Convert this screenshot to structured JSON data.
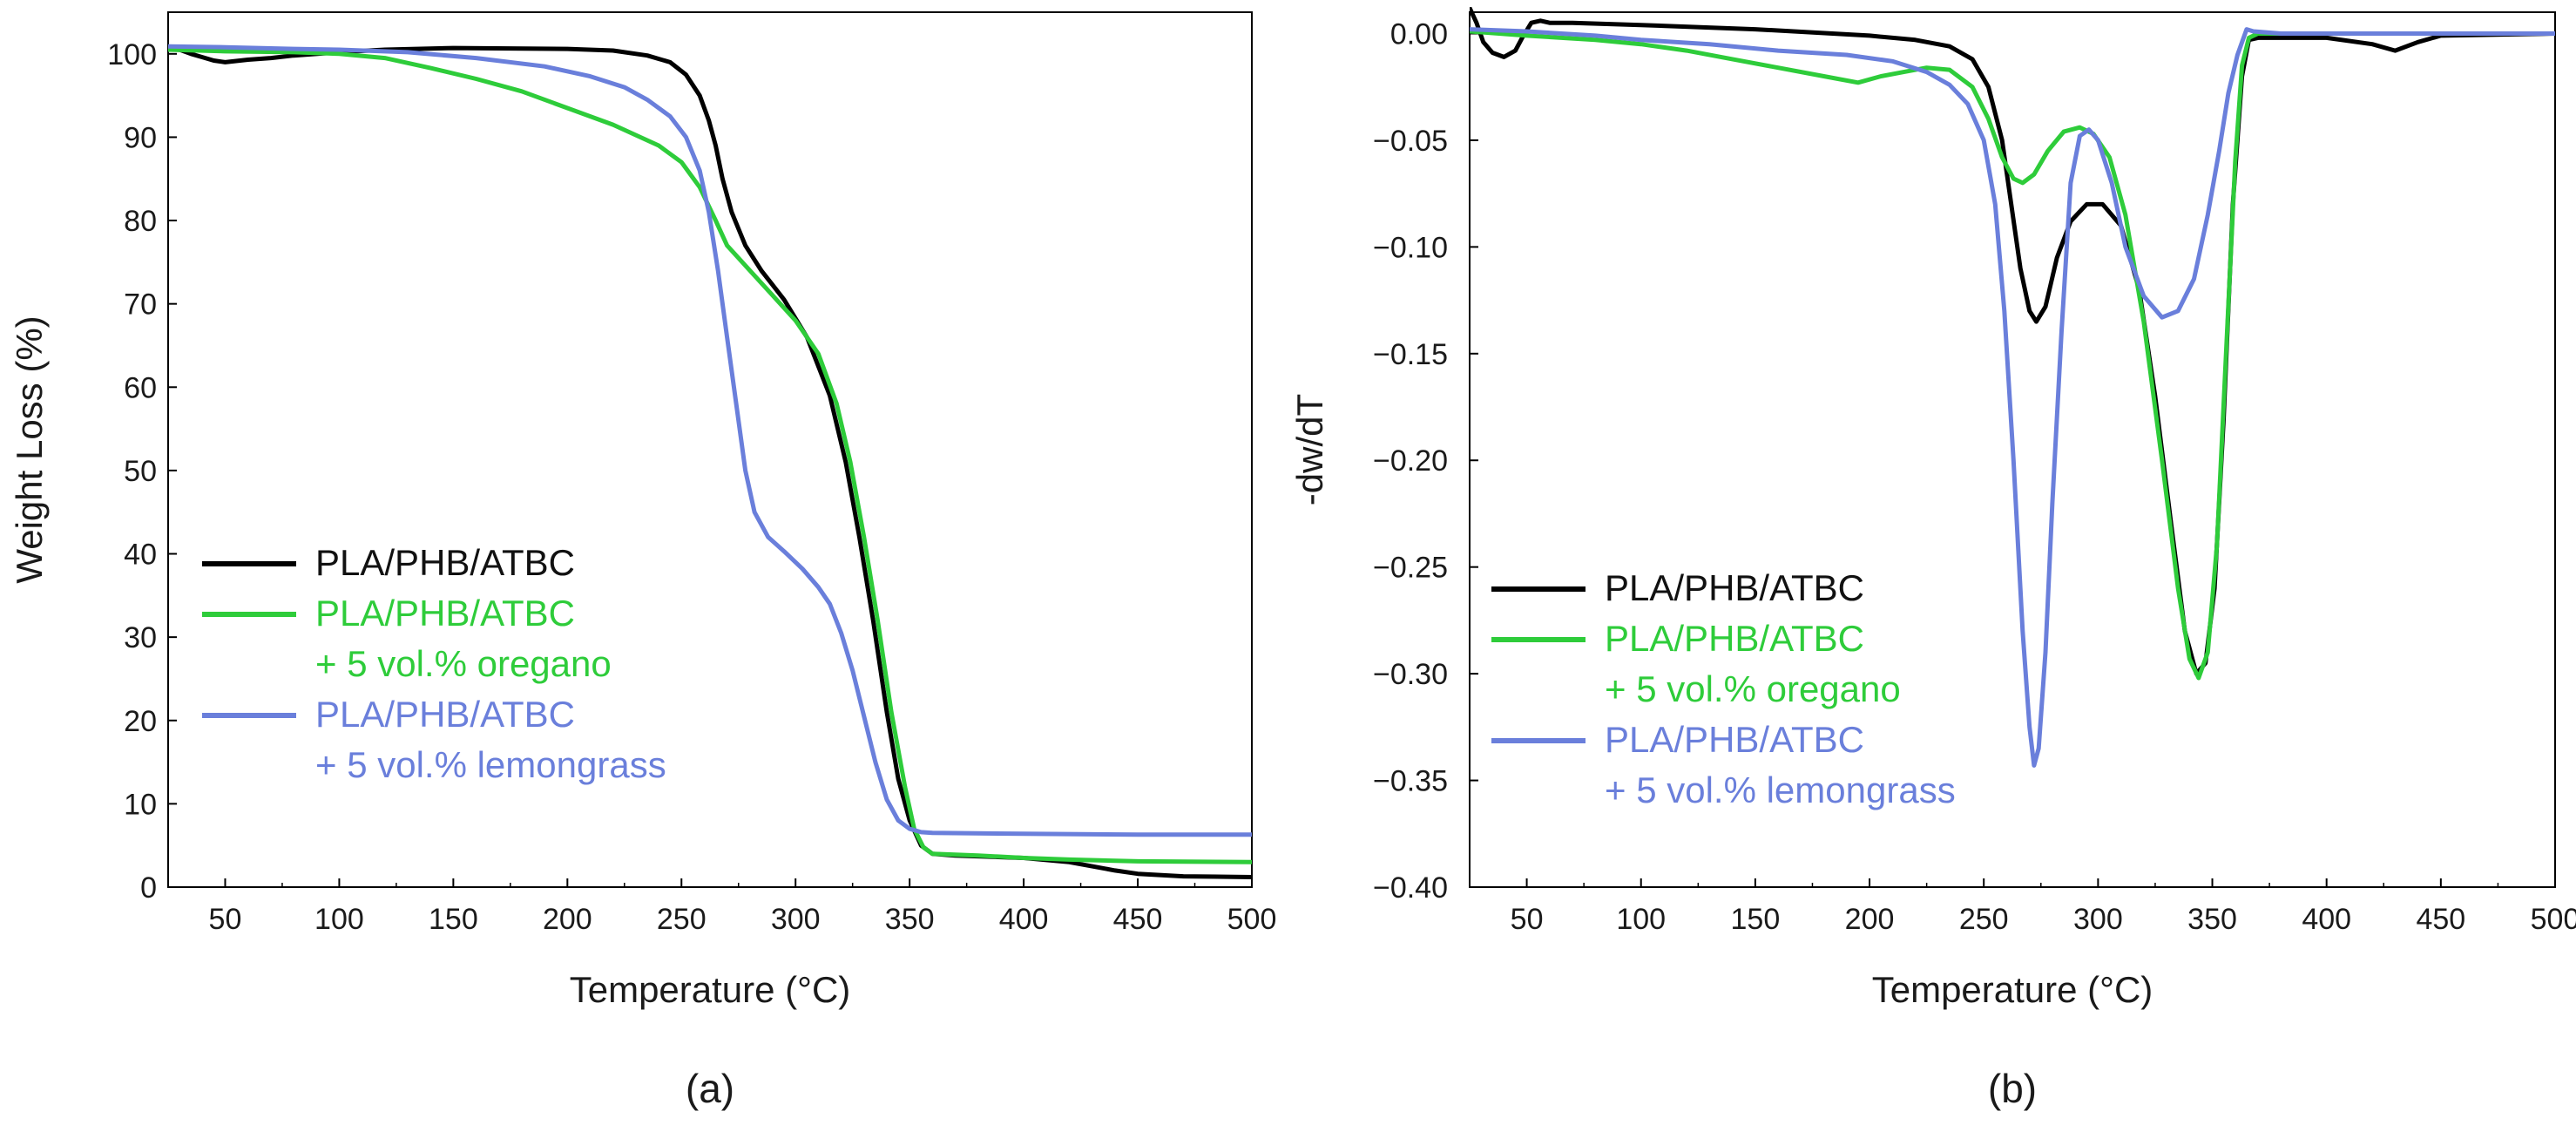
{
  "chart_data": [
    {
      "type": "line",
      "panel_label": "(a)",
      "xlabel": "Temperature (°C)",
      "ylabel": "Weight Loss (%)",
      "xlim": [
        25,
        500
      ],
      "ylim": [
        0,
        105
      ],
      "xticks": [
        50,
        100,
        150,
        200,
        250,
        300,
        350,
        400,
        450,
        500
      ],
      "yticks": [
        0,
        10,
        20,
        30,
        40,
        50,
        60,
        70,
        80,
        90,
        100
      ],
      "legend": "lower-left",
      "series": [
        {
          "name": "PLA/PHB/ATBC",
          "color": "#000000",
          "legend_lines": [
            "PLA/PHB/ATBC"
          ],
          "points": [
            [
              25,
              100.8
            ],
            [
              30,
              100.5
            ],
            [
              35,
              100
            ],
            [
              40,
              99.6
            ],
            [
              45,
              99.2
            ],
            [
              50,
              99
            ],
            [
              60,
              99.3
            ],
            [
              70,
              99.5
            ],
            [
              80,
              99.8
            ],
            [
              100,
              100.2
            ],
            [
              120,
              100.5
            ],
            [
              150,
              100.7
            ],
            [
              200,
              100.6
            ],
            [
              220,
              100.4
            ],
            [
              235,
              99.8
            ],
            [
              245,
              99
            ],
            [
              252,
              97.5
            ],
            [
              258,
              95
            ],
            [
              262,
              92
            ],
            [
              265,
              89
            ],
            [
              268,
              85
            ],
            [
              272,
              81
            ],
            [
              278,
              77
            ],
            [
              285,
              74
            ],
            [
              295,
              70.5
            ],
            [
              305,
              66
            ],
            [
              315,
              59
            ],
            [
              322,
              51
            ],
            [
              328,
              42
            ],
            [
              334,
              32
            ],
            [
              340,
              21
            ],
            [
              345,
              13
            ],
            [
              350,
              8
            ],
            [
              355,
              5
            ],
            [
              360,
              4
            ],
            [
              370,
              3.8
            ],
            [
              390,
              3.6
            ],
            [
              400,
              3.5
            ],
            [
              420,
              3
            ],
            [
              430,
              2.5
            ],
            [
              440,
              2
            ],
            [
              450,
              1.6
            ],
            [
              470,
              1.3
            ],
            [
              500,
              1.2
            ]
          ]
        },
        {
          "name": "PLA/PHB/ATBC + 5 vol.% oregano",
          "color": "#2ecc3a",
          "legend_lines": [
            "PLA/PHB/ATBC",
            "+ 5 vol.% oregano"
          ],
          "points": [
            [
              25,
              100.5
            ],
            [
              50,
              100.3
            ],
            [
              80,
              100.2
            ],
            [
              100,
              100
            ],
            [
              120,
              99.5
            ],
            [
              140,
              98.3
            ],
            [
              160,
              97
            ],
            [
              180,
              95.5
            ],
            [
              200,
              93.5
            ],
            [
              220,
              91.5
            ],
            [
              240,
              89
            ],
            [
              250,
              87
            ],
            [
              258,
              84
            ],
            [
              265,
              80
            ],
            [
              270,
              77
            ],
            [
              280,
              74
            ],
            [
              290,
              71
            ],
            [
              300,
              68
            ],
            [
              310,
              64
            ],
            [
              318,
              58
            ],
            [
              324,
              51
            ],
            [
              330,
              42
            ],
            [
              336,
              32
            ],
            [
              342,
              21
            ],
            [
              348,
              12
            ],
            [
              352,
              7
            ],
            [
              356,
              4.8
            ],
            [
              360,
              4
            ],
            [
              380,
              3.8
            ],
            [
              400,
              3.5
            ],
            [
              420,
              3.3
            ],
            [
              450,
              3.1
            ],
            [
              500,
              3.0
            ]
          ]
        },
        {
          "name": "PLA/PHB/ATBC + 5 vol.% lemongrass",
          "color": "#6a7fdb",
          "legend_lines": [
            "PLA/PHB/ATBC",
            "+ 5 vol.% lemongrass"
          ],
          "points": [
            [
              25,
              100.9
            ],
            [
              50,
              100.8
            ],
            [
              80,
              100.6
            ],
            [
              100,
              100.5
            ],
            [
              130,
              100.2
            ],
            [
              160,
              99.5
            ],
            [
              190,
              98.5
            ],
            [
              210,
              97.3
            ],
            [
              225,
              96
            ],
            [
              235,
              94.5
            ],
            [
              245,
              92.5
            ],
            [
              252,
              90
            ],
            [
              258,
              86
            ],
            [
              262,
              81
            ],
            [
              266,
              74
            ],
            [
              270,
              66
            ],
            [
              274,
              58
            ],
            [
              278,
              50
            ],
            [
              282,
              45
            ],
            [
              288,
              42
            ],
            [
              295,
              40.3
            ],
            [
              303,
              38.2
            ],
            [
              310,
              36
            ],
            [
              315,
              34
            ],
            [
              320,
              30.5
            ],
            [
              325,
              26
            ],
            [
              330,
              20.5
            ],
            [
              335,
              15
            ],
            [
              340,
              10.5
            ],
            [
              345,
              8
            ],
            [
              350,
              7
            ],
            [
              355,
              6.6
            ],
            [
              360,
              6.5
            ],
            [
              400,
              6.4
            ],
            [
              450,
              6.3
            ],
            [
              500,
              6.3
            ]
          ]
        }
      ]
    },
    {
      "type": "line",
      "panel_label": "(b)",
      "xlabel": "Temperature (°C)",
      "ylabel": "-dw/dT",
      "xlim": [
        25,
        500
      ],
      "ylim": [
        -0.4,
        0.01
      ],
      "xticks": [
        50,
        100,
        150,
        200,
        250,
        300,
        350,
        400,
        450,
        500
      ],
      "yticks": [
        0.0,
        -0.05,
        -0.1,
        -0.15,
        -0.2,
        -0.25,
        -0.3,
        -0.35,
        -0.4
      ],
      "ytick_labels": [
        "0.00",
        "−0.05",
        "−0.10",
        "−0.15",
        "−0.20",
        "−0.25",
        "−0.30",
        "−0.35",
        "−0.40"
      ],
      "legend": "lower-left",
      "series": [
        {
          "name": "PLA/PHB/ATBC",
          "color": "#000000",
          "legend_lines": [
            "PLA/PHB/ATBC"
          ],
          "points": [
            [
              25,
              0.012
            ],
            [
              28,
              0.005
            ],
            [
              31,
              -0.004
            ],
            [
              35,
              -0.009
            ],
            [
              40,
              -0.011
            ],
            [
              45,
              -0.008
            ],
            [
              48,
              -0.002
            ],
            [
              52,
              0.005
            ],
            [
              56,
              0.006
            ],
            [
              60,
              0.005
            ],
            [
              70,
              0.005
            ],
            [
              100,
              0.004
            ],
            [
              150,
              0.002
            ],
            [
              200,
              -0.001
            ],
            [
              220,
              -0.003
            ],
            [
              235,
              -0.006
            ],
            [
              245,
              -0.012
            ],
            [
              252,
              -0.025
            ],
            [
              258,
              -0.05
            ],
            [
              262,
              -0.08
            ],
            [
              266,
              -0.11
            ],
            [
              270,
              -0.13
            ],
            [
              273,
              -0.135
            ],
            [
              277,
              -0.128
            ],
            [
              282,
              -0.105
            ],
            [
              288,
              -0.088
            ],
            [
              295,
              -0.08
            ],
            [
              302,
              -0.08
            ],
            [
              310,
              -0.09
            ],
            [
              318,
              -0.12
            ],
            [
              325,
              -0.17
            ],
            [
              332,
              -0.23
            ],
            [
              338,
              -0.28
            ],
            [
              343,
              -0.3
            ],
            [
              347,
              -0.295
            ],
            [
              351,
              -0.26
            ],
            [
              355,
              -0.18
            ],
            [
              359,
              -0.08
            ],
            [
              363,
              -0.02
            ],
            [
              366,
              -0.003
            ],
            [
              370,
              -0.002
            ],
            [
              400,
              -0.002
            ],
            [
              420,
              -0.005
            ],
            [
              430,
              -0.008
            ],
            [
              440,
              -0.004
            ],
            [
              450,
              -0.001
            ],
            [
              500,
              0
            ]
          ]
        },
        {
          "name": "PLA/PHB/ATBC + 5 vol.% oregano",
          "color": "#2ecc3a",
          "legend_lines": [
            "PLA/PHB/ATBC",
            "+ 5 vol.% oregano"
          ],
          "points": [
            [
              25,
              0.001
            ],
            [
              50,
              -0.001
            ],
            [
              80,
              -0.003
            ],
            [
              100,
              -0.005
            ],
            [
              120,
              -0.008
            ],
            [
              140,
              -0.012
            ],
            [
              160,
              -0.016
            ],
            [
              180,
              -0.02
            ],
            [
              195,
              -0.023
            ],
            [
              205,
              -0.02
            ],
            [
              215,
              -0.018
            ],
            [
              225,
              -0.016
            ],
            [
              235,
              -0.017
            ],
            [
              245,
              -0.025
            ],
            [
              252,
              -0.04
            ],
            [
              258,
              -0.058
            ],
            [
              263,
              -0.068
            ],
            [
              267,
              -0.07
            ],
            [
              272,
              -0.066
            ],
            [
              278,
              -0.055
            ],
            [
              285,
              -0.046
            ],
            [
              292,
              -0.044
            ],
            [
              298,
              -0.047
            ],
            [
              305,
              -0.058
            ],
            [
              312,
              -0.085
            ],
            [
              320,
              -0.135
            ],
            [
              328,
              -0.2
            ],
            [
              335,
              -0.26
            ],
            [
              340,
              -0.293
            ],
            [
              344,
              -0.302
            ],
            [
              348,
              -0.29
            ],
            [
              352,
              -0.24
            ],
            [
              356,
              -0.15
            ],
            [
              360,
              -0.06
            ],
            [
              363,
              -0.015
            ],
            [
              366,
              -0.002
            ],
            [
              370,
              0
            ],
            [
              400,
              0
            ],
            [
              500,
              0
            ]
          ]
        },
        {
          "name": "PLA/PHB/ATBC + 5 vol.% lemongrass",
          "color": "#6a7fdb",
          "legend_lines": [
            "PLA/PHB/ATBC",
            "+ 5 vol.% lemongrass"
          ],
          "points": [
            [
              25,
              0.002
            ],
            [
              50,
              0.001
            ],
            [
              80,
              -0.001
            ],
            [
              100,
              -0.003
            ],
            [
              130,
              -0.005
            ],
            [
              160,
              -0.008
            ],
            [
              190,
              -0.01
            ],
            [
              210,
              -0.013
            ],
            [
              225,
              -0.018
            ],
            [
              235,
              -0.024
            ],
            [
              243,
              -0.033
            ],
            [
              250,
              -0.05
            ],
            [
              255,
              -0.08
            ],
            [
              259,
              -0.13
            ],
            [
              263,
              -0.2
            ],
            [
              267,
              -0.28
            ],
            [
              270,
              -0.325
            ],
            [
              272,
              -0.343
            ],
            [
              274,
              -0.335
            ],
            [
              277,
              -0.29
            ],
            [
              280,
              -0.22
            ],
            [
              284,
              -0.14
            ],
            [
              288,
              -0.07
            ],
            [
              292,
              -0.048
            ],
            [
              296,
              -0.045
            ],
            [
              300,
              -0.05
            ],
            [
              306,
              -0.07
            ],
            [
              312,
              -0.1
            ],
            [
              320,
              -0.123
            ],
            [
              328,
              -0.133
            ],
            [
              335,
              -0.13
            ],
            [
              342,
              -0.115
            ],
            [
              348,
              -0.085
            ],
            [
              353,
              -0.055
            ],
            [
              357,
              -0.028
            ],
            [
              361,
              -0.01
            ],
            [
              365,
              0.002
            ],
            [
              368,
              0.001
            ],
            [
              380,
              0
            ],
            [
              420,
              0
            ],
            [
              460,
              0
            ],
            [
              500,
              0
            ]
          ]
        }
      ]
    }
  ]
}
